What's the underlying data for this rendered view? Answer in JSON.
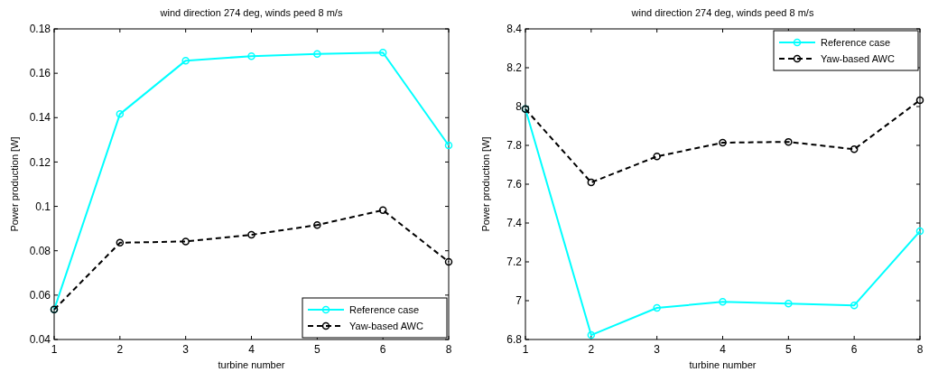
{
  "chart_data": [
    {
      "type": "line",
      "title": "wind direction 274 deg, winds peed 8 m/s",
      "xlabel": "turbine number",
      "ylabel": "Power production [W]",
      "categories": [
        "1",
        "2",
        "3",
        "4",
        "5",
        "6",
        "8"
      ],
      "ylim": [
        0.04,
        0.18
      ],
      "yticks": [
        0.04,
        0.06,
        0.08,
        0.1,
        0.12,
        0.14,
        0.16,
        0.18
      ],
      "grid": false,
      "legend": "bottom right",
      "marker": "circle",
      "series": [
        {
          "name": "Reference case",
          "color": "#00ffff",
          "line_style": "solid",
          "values": [
            0.0535,
            0.1416,
            0.1657,
            0.1677,
            0.1687,
            0.1693,
            0.1275
          ]
        },
        {
          "name": "Yaw-based AWC",
          "color": "#000000",
          "line_style": "dashed",
          "values": [
            0.0535,
            0.0836,
            0.0842,
            0.0872,
            0.0916,
            0.0983,
            0.075
          ]
        }
      ]
    },
    {
      "type": "line",
      "title": "wind direction 274 deg, winds peed 8 m/s",
      "xlabel": "turbine number",
      "ylabel": "Power production [W]",
      "categories": [
        "1",
        "2",
        "3",
        "4",
        "5",
        "6",
        "8"
      ],
      "ylim": [
        6.8,
        8.4
      ],
      "yticks": [
        6.8,
        7,
        7.2,
        7.4,
        7.6,
        7.8,
        8,
        8.2,
        8.4
      ],
      "grid": false,
      "legend": "top right",
      "marker": "circle",
      "series": [
        {
          "name": "Reference case",
          "color": "#00ffff",
          "line_style": "solid",
          "values": [
            7.987,
            6.823,
            6.963,
            6.994,
            6.985,
            6.976,
            7.358
          ]
        },
        {
          "name": "Yaw-based AWC",
          "color": "#000000",
          "line_style": "dashed",
          "values": [
            7.987,
            7.609,
            7.743,
            7.814,
            7.818,
            7.78,
            8.033
          ]
        }
      ]
    }
  ]
}
